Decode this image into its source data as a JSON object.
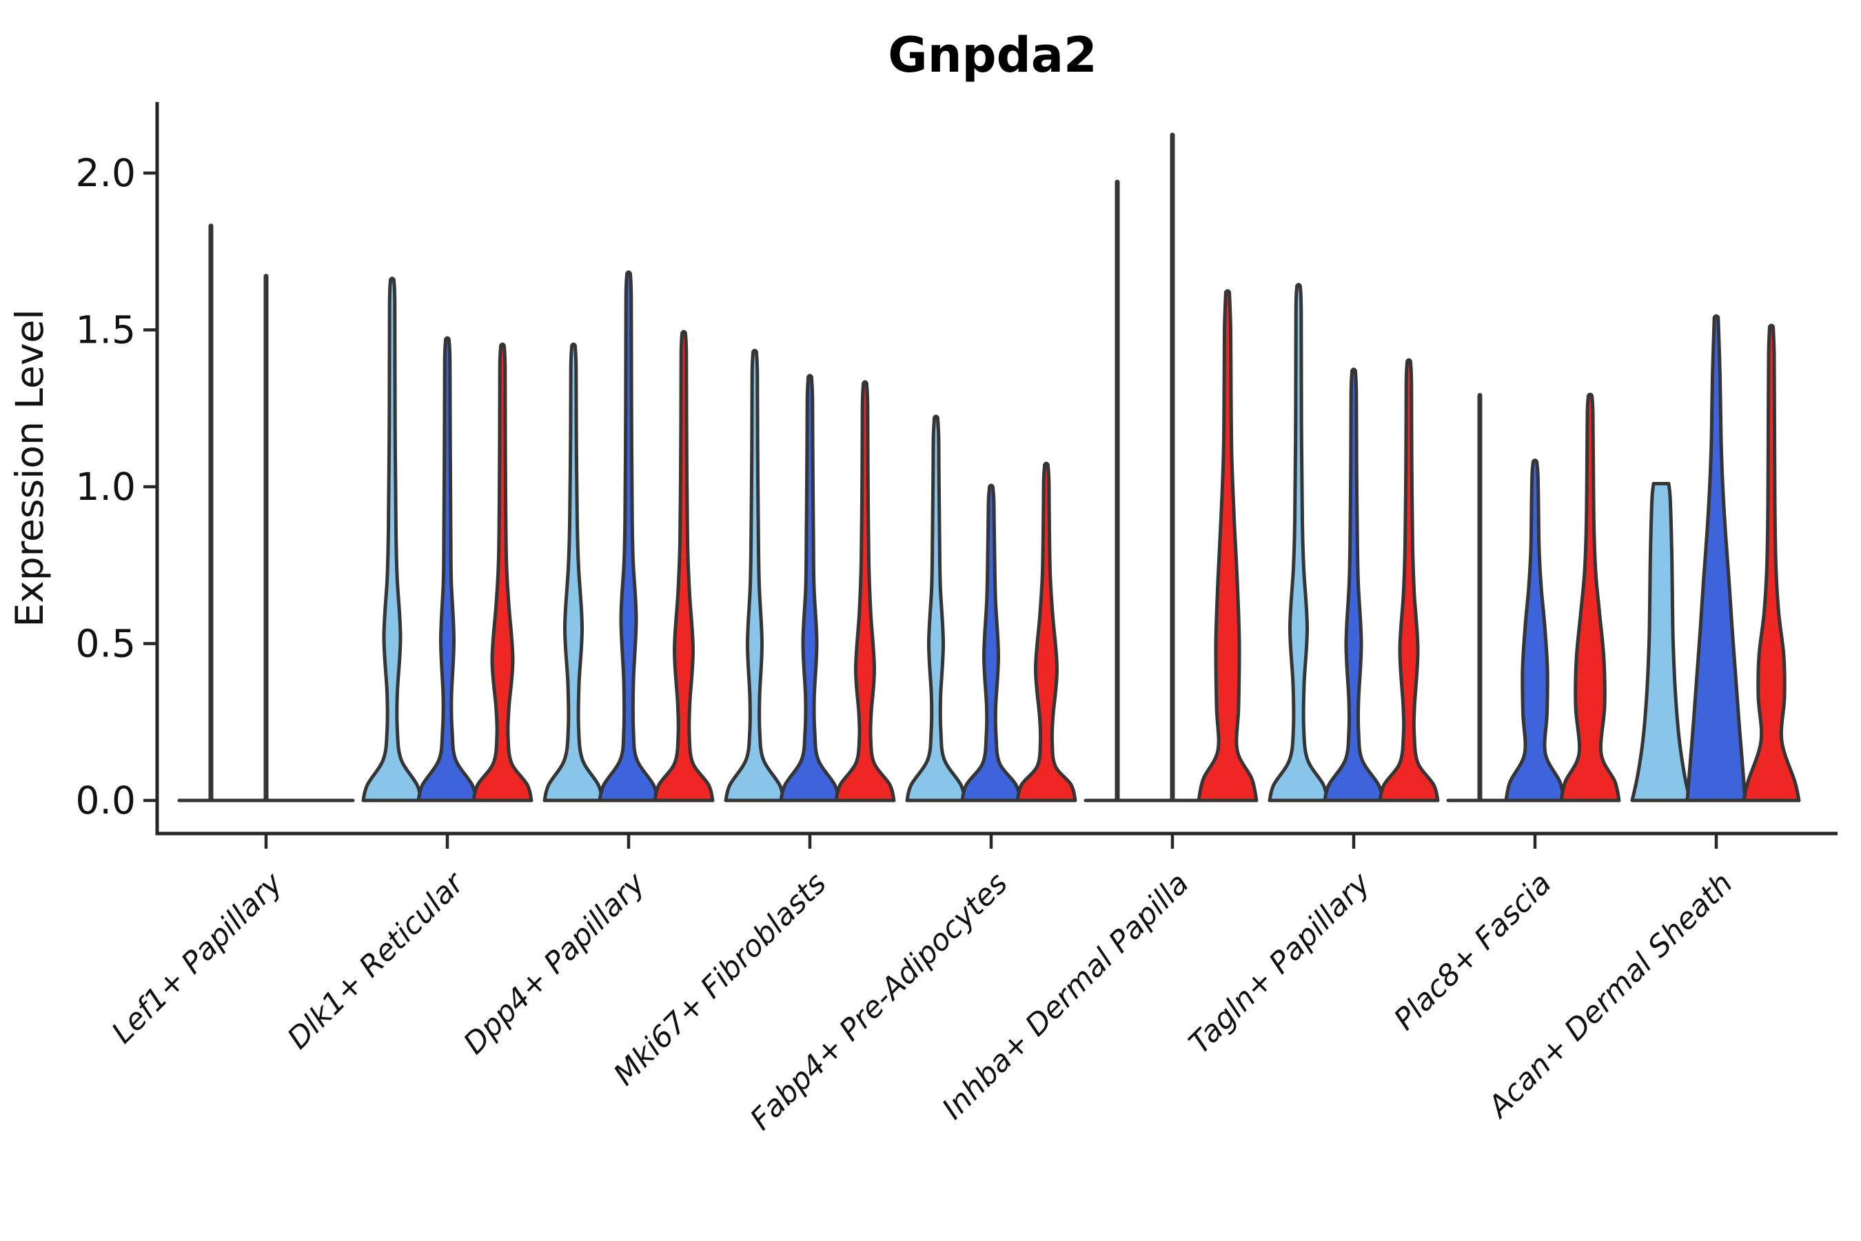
{
  "title": "Gnpda2",
  "ylabel": "Expression Level",
  "chart_data": {
    "type": "violin",
    "title": "Gnpda2",
    "ylabel": "Expression Level",
    "xlabel": "",
    "grid": false,
    "legend": "none",
    "ylim": [
      0,
      2.23
    ],
    "ytick_values": [
      0.0,
      0.5,
      1.0,
      1.5,
      2.0
    ],
    "ytick_labels": [
      "0.0",
      "0.5",
      "1.0",
      "1.5",
      "2.0"
    ],
    "categories": [
      "Lef1+ Papillary",
      "Dlk1+ Reticular",
      "Dpp4+ Papillary",
      "Mki67+ Fibroblasts",
      "Fabp4+ Pre-Adipocytes",
      "Inhba+ Dermal Papilla",
      "Tagln+ Papillary",
      "Plac8+ Fascia",
      "Acan+ Dermal Sheath"
    ],
    "series": [
      {
        "name": "series-1-lightblue",
        "color": "#88C5E9",
        "max_expression": [
          1.84,
          1.66,
          1.45,
          1.43,
          1.22,
          1.98,
          1.64,
          1.3,
          1.01
        ]
      },
      {
        "name": "series-2-darkblue",
        "color": "#3D64DA",
        "max_expression": [
          1.68,
          1.47,
          1.68,
          1.35,
          1.0,
          2.13,
          1.37,
          1.08,
          1.54
        ]
      },
      {
        "name": "series-3-red",
        "color": "#EE2725",
        "max_expression": [
          0.0,
          1.45,
          1.49,
          1.33,
          1.07,
          1.62,
          1.4,
          1.29,
          1.51
        ]
      }
    ],
    "violins": [
      {
        "category": 0,
        "series": 0,
        "kind": "spike",
        "max": 1.84
      },
      {
        "category": 0,
        "series": 1,
        "kind": "spike",
        "max": 1.68
      },
      {
        "category": 0,
        "series": 2,
        "kind": "flat",
        "max": 0.0
      },
      {
        "category": 1,
        "series": 0,
        "kind": "violin",
        "max": 1.66,
        "profile": [
          [
            0,
            42
          ],
          [
            0.05,
            36
          ],
          [
            0.13,
            13
          ],
          [
            0.22,
            7.5
          ],
          [
            0.34,
            7.4
          ],
          [
            0.52,
            12
          ],
          [
            0.71,
            7.2
          ],
          [
            0.86,
            5.5
          ],
          [
            1.2,
            4.2
          ],
          [
            1.58,
            3.8
          ],
          [
            1.66,
            2.4
          ]
        ]
      },
      {
        "category": 1,
        "series": 1,
        "kind": "violin",
        "max": 1.47,
        "profile": [
          [
            0,
            42
          ],
          [
            0.05,
            36
          ],
          [
            0.13,
            12
          ],
          [
            0.22,
            7
          ],
          [
            0.33,
            6
          ],
          [
            0.51,
            9.5
          ],
          [
            0.7,
            5.7
          ],
          [
            0.85,
            5
          ],
          [
            1.15,
            4.2
          ],
          [
            1.4,
            3.8
          ],
          [
            1.47,
            2.4
          ]
        ]
      },
      {
        "category": 1,
        "series": 2,
        "kind": "violin",
        "max": 1.45,
        "profile": [
          [
            0,
            42
          ],
          [
            0.05,
            36
          ],
          [
            0.12,
            13
          ],
          [
            0.21,
            8
          ],
          [
            0.3,
            9.5
          ],
          [
            0.45,
            15
          ],
          [
            0.63,
            9
          ],
          [
            0.78,
            5.5
          ],
          [
            1.1,
            4.2
          ],
          [
            1.38,
            3.8
          ],
          [
            1.45,
            2.4
          ]
        ]
      },
      {
        "category": 2,
        "series": 0,
        "kind": "violin",
        "max": 1.45,
        "profile": [
          [
            0,
            42
          ],
          [
            0.05,
            36
          ],
          [
            0.13,
            13
          ],
          [
            0.23,
            7.5
          ],
          [
            0.37,
            8
          ],
          [
            0.55,
            12.5
          ],
          [
            0.74,
            7.5
          ],
          [
            0.88,
            5.5
          ],
          [
            1.15,
            4.2
          ],
          [
            1.38,
            3.8
          ],
          [
            1.45,
            2.4
          ]
        ]
      },
      {
        "category": 2,
        "series": 1,
        "kind": "violin",
        "max": 1.68,
        "profile": [
          [
            0,
            42
          ],
          [
            0.05,
            36
          ],
          [
            0.13,
            12
          ],
          [
            0.22,
            7
          ],
          [
            0.38,
            7
          ],
          [
            0.58,
            11
          ],
          [
            0.76,
            6.6
          ],
          [
            0.9,
            5.2
          ],
          [
            1.25,
            4.2
          ],
          [
            1.6,
            3.8
          ],
          [
            1.68,
            2.4
          ]
        ]
      },
      {
        "category": 2,
        "series": 2,
        "kind": "violin",
        "max": 1.49,
        "profile": [
          [
            0,
            42
          ],
          [
            0.05,
            36
          ],
          [
            0.12,
            13
          ],
          [
            0.21,
            8
          ],
          [
            0.31,
            8.8
          ],
          [
            0.48,
            13.5
          ],
          [
            0.66,
            8.4
          ],
          [
            0.82,
            5.5
          ],
          [
            1.15,
            4.2
          ],
          [
            1.42,
            3.8
          ],
          [
            1.49,
            2.4
          ]
        ]
      },
      {
        "category": 3,
        "series": 0,
        "kind": "violin",
        "max": 1.43,
        "profile": [
          [
            0,
            42
          ],
          [
            0.05,
            36
          ],
          [
            0.13,
            12.5
          ],
          [
            0.22,
            7.2
          ],
          [
            0.33,
            7
          ],
          [
            0.5,
            10.5
          ],
          [
            0.68,
            6.6
          ],
          [
            0.84,
            5.3
          ],
          [
            1.12,
            4.2
          ],
          [
            1.36,
            3.8
          ],
          [
            1.43,
            2.4
          ]
        ]
      },
      {
        "category": 3,
        "series": 1,
        "kind": "violin",
        "max": 1.35,
        "profile": [
          [
            0,
            42
          ],
          [
            0.05,
            36
          ],
          [
            0.13,
            12
          ],
          [
            0.22,
            7
          ],
          [
            0.33,
            6.3
          ],
          [
            0.5,
            10
          ],
          [
            0.68,
            6
          ],
          [
            0.84,
            5.1
          ],
          [
            1.1,
            4.2
          ],
          [
            1.28,
            3.8
          ],
          [
            1.35,
            2.4
          ]
        ]
      },
      {
        "category": 3,
        "series": 2,
        "kind": "violin",
        "max": 1.33,
        "profile": [
          [
            0,
            42
          ],
          [
            0.05,
            36
          ],
          [
            0.12,
            13
          ],
          [
            0.2,
            8.2
          ],
          [
            0.28,
            9
          ],
          [
            0.42,
            13.5
          ],
          [
            0.6,
            8.2
          ],
          [
            0.76,
            5.5
          ],
          [
            1.05,
            4.2
          ],
          [
            1.26,
            3.8
          ],
          [
            1.33,
            2.4
          ]
        ]
      },
      {
        "category": 4,
        "series": 0,
        "kind": "violin",
        "max": 1.22,
        "profile": [
          [
            0,
            42
          ],
          [
            0.05,
            36
          ],
          [
            0.13,
            12
          ],
          [
            0.22,
            7
          ],
          [
            0.33,
            6.6
          ],
          [
            0.5,
            10.5
          ],
          [
            0.68,
            6.3
          ],
          [
            0.83,
            5.2
          ],
          [
            1.05,
            4.2
          ],
          [
            1.16,
            3.8
          ],
          [
            1.22,
            2.4
          ]
        ]
      },
      {
        "category": 4,
        "series": 1,
        "kind": "violin",
        "max": 1.0,
        "profile": [
          [
            0,
            42
          ],
          [
            0.05,
            36
          ],
          [
            0.12,
            12
          ],
          [
            0.21,
            7
          ],
          [
            0.3,
            6.6
          ],
          [
            0.46,
            10.5
          ],
          [
            0.64,
            6.3
          ],
          [
            0.78,
            5
          ],
          [
            0.9,
            4.2
          ],
          [
            0.96,
            3.8
          ],
          [
            1.0,
            2.4
          ]
        ]
      },
      {
        "category": 4,
        "series": 2,
        "kind": "violin",
        "max": 1.07,
        "profile": [
          [
            0,
            42
          ],
          [
            0.05,
            36
          ],
          [
            0.11,
            13
          ],
          [
            0.19,
            8.5
          ],
          [
            0.27,
            9.8
          ],
          [
            0.42,
            15.5
          ],
          [
            0.59,
            9.3
          ],
          [
            0.73,
            5.5
          ],
          [
            0.92,
            4.2
          ],
          [
            1.02,
            3.8
          ],
          [
            1.07,
            2.4
          ]
        ]
      },
      {
        "category": 5,
        "series": 0,
        "kind": "spike",
        "max": 1.98
      },
      {
        "category": 5,
        "series": 1,
        "kind": "spike",
        "max": 2.13
      },
      {
        "category": 5,
        "series": 2,
        "kind": "violin",
        "max": 1.62,
        "profile": [
          [
            0,
            42
          ],
          [
            0.07,
            35
          ],
          [
            0.16,
            14
          ],
          [
            0.3,
            16
          ],
          [
            0.5,
            17
          ],
          [
            0.7,
            14
          ],
          [
            0.9,
            9.5
          ],
          [
            1.1,
            6
          ],
          [
            1.3,
            5
          ],
          [
            1.5,
            4.5
          ],
          [
            1.62,
            2.6
          ]
        ]
      },
      {
        "category": 6,
        "series": 0,
        "kind": "violin",
        "max": 1.64,
        "profile": [
          [
            0,
            42
          ],
          [
            0.05,
            36
          ],
          [
            0.13,
            13
          ],
          [
            0.23,
            7.5
          ],
          [
            0.37,
            8
          ],
          [
            0.55,
            12.5
          ],
          [
            0.74,
            7.5
          ],
          [
            0.89,
            5.5
          ],
          [
            1.2,
            4.2
          ],
          [
            1.56,
            3.8
          ],
          [
            1.64,
            2.4
          ]
        ]
      },
      {
        "category": 6,
        "series": 1,
        "kind": "violin",
        "max": 1.37,
        "profile": [
          [
            0,
            42
          ],
          [
            0.05,
            36
          ],
          [
            0.13,
            12
          ],
          [
            0.22,
            7
          ],
          [
            0.32,
            7
          ],
          [
            0.5,
            11
          ],
          [
            0.69,
            6.6
          ],
          [
            0.84,
            5.2
          ],
          [
            1.08,
            4.2
          ],
          [
            1.3,
            3.8
          ],
          [
            1.37,
            2.4
          ]
        ]
      },
      {
        "category": 6,
        "series": 2,
        "kind": "violin",
        "max": 1.4,
        "profile": [
          [
            0,
            42
          ],
          [
            0.05,
            36
          ],
          [
            0.12,
            13
          ],
          [
            0.21,
            7.8
          ],
          [
            0.3,
            8.2
          ],
          [
            0.48,
            13
          ],
          [
            0.66,
            7.8
          ],
          [
            0.81,
            5.5
          ],
          [
            1.08,
            4.2
          ],
          [
            1.33,
            3.8
          ],
          [
            1.4,
            2.4
          ]
        ]
      },
      {
        "category": 7,
        "series": 0,
        "kind": "spike",
        "max": 1.3
      },
      {
        "category": 7,
        "series": 1,
        "kind": "violin",
        "max": 1.08,
        "profile": [
          [
            0,
            42
          ],
          [
            0.06,
            36
          ],
          [
            0.15,
            15
          ],
          [
            0.28,
            17.5
          ],
          [
            0.42,
            18
          ],
          [
            0.56,
            14
          ],
          [
            0.68,
            9
          ],
          [
            0.8,
            6
          ],
          [
            0.95,
            5
          ],
          [
            1.04,
            4.2
          ],
          [
            1.08,
            2.6
          ]
        ]
      },
      {
        "category": 7,
        "series": 2,
        "kind": "violin",
        "max": 1.29,
        "profile": [
          [
            0,
            42
          ],
          [
            0.06,
            36
          ],
          [
            0.15,
            16
          ],
          [
            0.3,
            21
          ],
          [
            0.45,
            20
          ],
          [
            0.6,
            13.5
          ],
          [
            0.73,
            8
          ],
          [
            0.88,
            5.5
          ],
          [
            1.1,
            4.5
          ],
          [
            1.24,
            4
          ],
          [
            1.29,
            2.6
          ]
        ]
      },
      {
        "category": 8,
        "series": 0,
        "kind": "violin",
        "max": 1.01,
        "cap": "flat",
        "profile": [
          [
            0,
            42
          ],
          [
            0.08,
            34
          ],
          [
            0.2,
            26
          ],
          [
            0.35,
            20.5
          ],
          [
            0.5,
            17.5
          ],
          [
            0.62,
            16.5
          ],
          [
            0.75,
            15.8
          ],
          [
            0.88,
            14.5
          ],
          [
            0.97,
            13
          ],
          [
            1.01,
            11
          ]
        ]
      },
      {
        "category": 8,
        "series": 1,
        "kind": "violin",
        "max": 1.54,
        "profile": [
          [
            0,
            42
          ],
          [
            0.1,
            38.5
          ],
          [
            0.25,
            33
          ],
          [
            0.4,
            28
          ],
          [
            0.55,
            23
          ],
          [
            0.7,
            18.5
          ],
          [
            0.85,
            13.5
          ],
          [
            1.0,
            9.5
          ],
          [
            1.15,
            7
          ],
          [
            1.35,
            5.5
          ],
          [
            1.54,
            2.8
          ]
        ]
      },
      {
        "category": 8,
        "series": 2,
        "kind": "violin",
        "max": 1.51,
        "profile": [
          [
            0,
            40
          ],
          [
            0.06,
            34
          ],
          [
            0.19,
            15
          ],
          [
            0.33,
            19
          ],
          [
            0.46,
            18
          ],
          [
            0.6,
            10.5
          ],
          [
            0.75,
            6.5
          ],
          [
            0.95,
            5
          ],
          [
            1.2,
            4.5
          ],
          [
            1.42,
            4
          ],
          [
            1.51,
            2.6
          ]
        ]
      }
    ],
    "style": {
      "outline_color": "#353535",
      "axis_color": "#262626",
      "background": "#ffffff"
    }
  }
}
